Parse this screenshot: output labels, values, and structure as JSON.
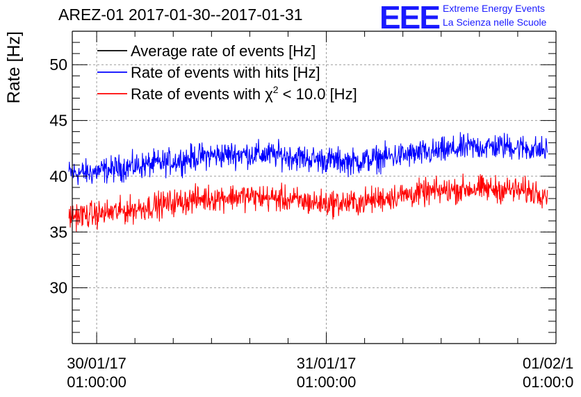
{
  "header": {
    "title": "AREZ-01 2017-01-30--2017-01-31",
    "logo_text": "EEE",
    "logo_line1": "Extreme Energy Events",
    "logo_line2": "La Scienza nelle Scuole"
  },
  "colors": {
    "average": "#000000",
    "hits": "#0000ff",
    "chi2": "#ff0000",
    "logo": "#1a1aff"
  },
  "chart_data": {
    "type": "line",
    "ylabel": "Rate [Hz]",
    "xlabel": "",
    "ylim": [
      25,
      53
    ],
    "yticks": [
      30,
      35,
      40,
      45,
      50
    ],
    "xlim": [
      "2017-01-29 22:27:00",
      "2017-02-01 01:00:00"
    ],
    "xticks": [
      {
        "t": "2017-01-30 01:00:00",
        "date": "30/01/17",
        "time": "01:00:00"
      },
      {
        "t": "2017-01-31 01:00:00",
        "date": "31/01/17",
        "time": "01:00:00"
      },
      {
        "t": "2017-02-01 01:00:00",
        "date": "01/02/1",
        "time": "01:00:0"
      }
    ],
    "grid": true,
    "legend_position": "top-left",
    "series": [
      {
        "name": "Average rate of events [Hz]",
        "color": "#000000",
        "x": [],
        "y": []
      },
      {
        "name": "Rate of events with hits [Hz]",
        "color": "#0000ff",
        "x": [
          "2017-01-30 00:00",
          "2017-01-30 04:00",
          "2017-01-30 08:00",
          "2017-01-30 12:00",
          "2017-01-30 16:00",
          "2017-01-30 20:00",
          "2017-01-31 00:00",
          "2017-01-31 04:00",
          "2017-01-31 08:00",
          "2017-01-31 12:00",
          "2017-01-31 16:00",
          "2017-01-31 20:00",
          "2017-02-01 00:00"
        ],
        "y": [
          40.3,
          40.8,
          41.2,
          41.8,
          42.0,
          41.9,
          41.5,
          41.3,
          41.8,
          42.1,
          42.6,
          42.7,
          42.3
        ],
        "spread": 1.6
      },
      {
        "name": "Rate of events with χ2 < 10.0 [Hz]",
        "name_text": "Rate of events with χ",
        "name_sup": "2",
        "name_rest": " < 10.0 [Hz]",
        "color": "#ff0000",
        "x": [
          "2017-01-30 00:00",
          "2017-01-30 04:00",
          "2017-01-30 08:00",
          "2017-01-30 12:00",
          "2017-01-30 16:00",
          "2017-01-30 20:00",
          "2017-01-31 00:00",
          "2017-01-31 04:00",
          "2017-01-31 08:00",
          "2017-01-31 12:00",
          "2017-01-31 16:00",
          "2017-01-31 20:00",
          "2017-02-01 00:00"
        ],
        "y": [
          36.5,
          36.9,
          37.5,
          38.0,
          38.2,
          38.0,
          37.6,
          37.6,
          38.2,
          38.6,
          38.9,
          38.8,
          38.5
        ],
        "spread": 1.6
      }
    ]
  }
}
